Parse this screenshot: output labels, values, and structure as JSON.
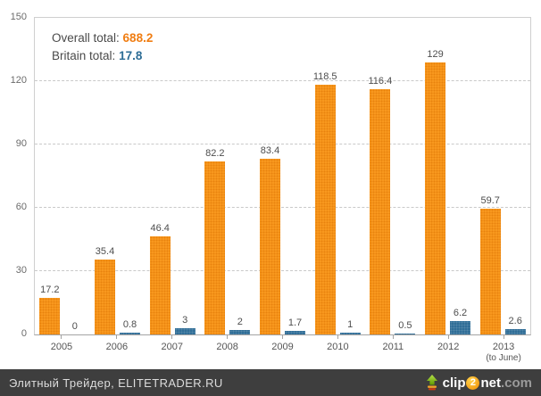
{
  "legend": {
    "overall_label": "Overall total:",
    "overall_value": "688.2",
    "britain_label": "Britain total:",
    "britain_value": "17.8"
  },
  "footer": {
    "site_text": "Элитный Трейдер, ELITETRADER.RU",
    "logo": {
      "clip": "clip",
      "two": "2",
      "net": "net",
      "dotcom": ".com",
      "icon": "up-arrow-icon"
    }
  },
  "colors": {
    "overall_bar": "#f6921e",
    "britain_bar": "#2e6d96",
    "overall_value_text": "#f07d12",
    "britain_value_text": "#2d6d96",
    "grid": "#c9c9c9",
    "axis": "#a3a3a3",
    "value_label": "#4d4d4d",
    "footer_bg": "#3e3e3e",
    "footer_text": "#dcdcdc"
  },
  "chart_data": {
    "type": "bar",
    "categories": [
      "2005",
      "2006",
      "2007",
      "2008",
      "2009",
      "2010",
      "2011",
      "2012",
      "2013"
    ],
    "category_sublabels": [
      "",
      "",
      "",
      "",
      "",
      "",
      "",
      "",
      "(to June)"
    ],
    "series": [
      {
        "name": "Overall",
        "color": "#f6921e",
        "values": [
          17.2,
          35.4,
          46.4,
          82.2,
          83.4,
          118.5,
          116.4,
          129,
          59.7
        ],
        "total": 688.2
      },
      {
        "name": "Britain",
        "color": "#2e6d96",
        "values": [
          0,
          0.8,
          3,
          2,
          1.7,
          1,
          0.5,
          6.2,
          2.6
        ],
        "total": 17.8
      }
    ],
    "yticks": [
      0,
      30,
      60,
      90,
      120,
      150
    ],
    "ylim": [
      0,
      150
    ],
    "grid": true,
    "grid_style": "dashed",
    "legend_position": "top-left",
    "value_labels": true,
    "title": "",
    "xlabel": "",
    "ylabel": ""
  }
}
